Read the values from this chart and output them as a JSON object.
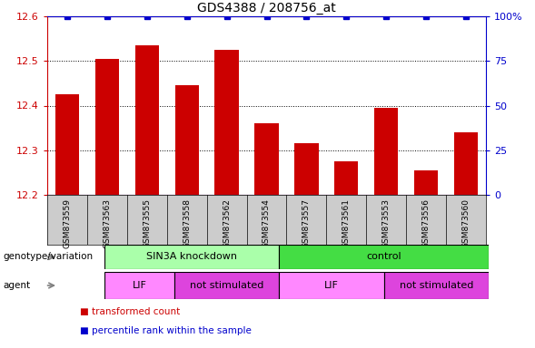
{
  "title": "GDS4388 / 208756_at",
  "samples": [
    "GSM873559",
    "GSM873563",
    "GSM873555",
    "GSM873558",
    "GSM873562",
    "GSM873554",
    "GSM873557",
    "GSM873561",
    "GSM873553",
    "GSM873556",
    "GSM873560"
  ],
  "bar_values": [
    12.425,
    12.505,
    12.535,
    12.445,
    12.525,
    12.36,
    12.315,
    12.275,
    12.395,
    12.255,
    12.34
  ],
  "percentile_values": [
    100,
    100,
    100,
    100,
    100,
    100,
    100,
    100,
    100,
    100,
    100
  ],
  "ylim_left": [
    12.2,
    12.6
  ],
  "ylim_right": [
    0,
    100
  ],
  "yticks_left": [
    12.2,
    12.3,
    12.4,
    12.5,
    12.6
  ],
  "yticks_right": [
    0,
    25,
    50,
    75,
    100
  ],
  "bar_color": "#cc0000",
  "dot_color": "#0000cc",
  "genotype_groups": [
    {
      "label": "SIN3A knockdown",
      "start": 0,
      "end": 5,
      "color": "#aaffaa"
    },
    {
      "label": "control",
      "start": 5,
      "end": 11,
      "color": "#44dd44"
    }
  ],
  "agent_groups": [
    {
      "label": "LIF",
      "start": 0,
      "end": 2,
      "color": "#ff88ff"
    },
    {
      "label": "not stimulated",
      "start": 2,
      "end": 5,
      "color": "#dd44dd"
    },
    {
      "label": "LIF",
      "start": 5,
      "end": 8,
      "color": "#ff88ff"
    },
    {
      "label": "not stimulated",
      "start": 8,
      "end": 11,
      "color": "#dd44dd"
    }
  ],
  "legend_items": [
    {
      "label": "transformed count",
      "color": "#cc0000"
    },
    {
      "label": "percentile rank within the sample",
      "color": "#0000cc"
    }
  ],
  "left_axis_color": "#cc0000",
  "right_axis_color": "#0000cc",
  "background_color": "#ffffff",
  "xticklabel_bg": "#cccccc",
  "grid_yticks": [
    12.3,
    12.4,
    12.5
  ]
}
